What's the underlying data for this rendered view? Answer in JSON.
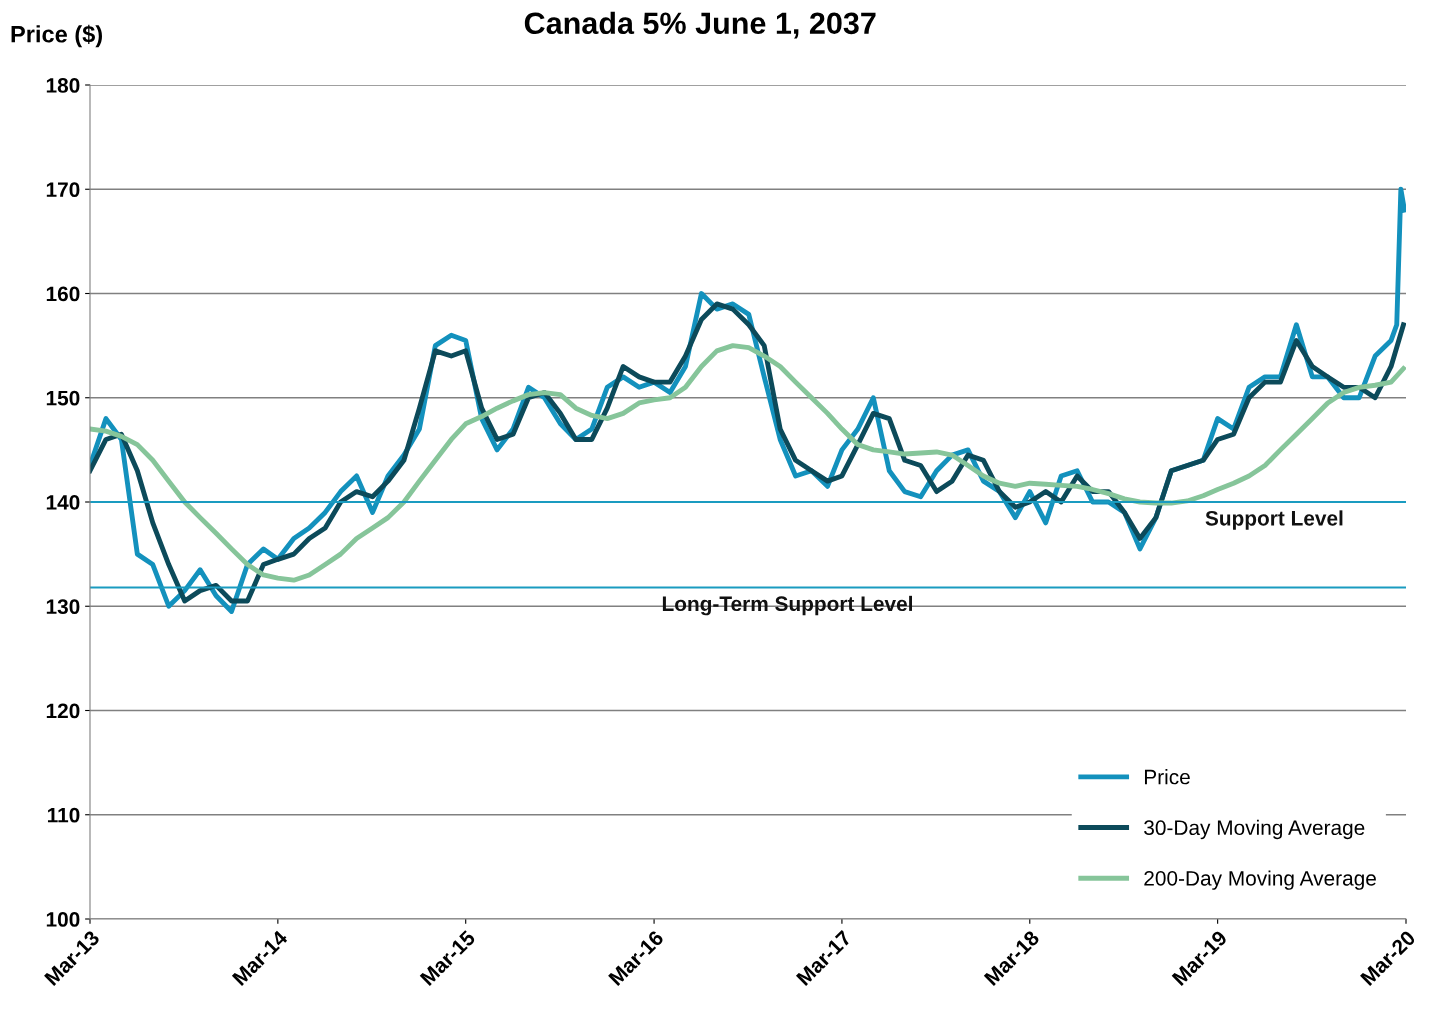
{
  "chart_data": {
    "type": "line",
    "title": "Canada 5% June 1, 2037",
    "ylabel": "Price ($)",
    "x": [
      "2013-03",
      "2013-04",
      "2013-05",
      "2013-06",
      "2013-07",
      "2013-08",
      "2013-09",
      "2013-10",
      "2013-11",
      "2013-12",
      "2014-01",
      "2014-02",
      "2014-03",
      "2014-04",
      "2014-05",
      "2014-06",
      "2014-07",
      "2014-08",
      "2014-09",
      "2014-10",
      "2014-11",
      "2014-12",
      "2015-01",
      "2015-02",
      "2015-03",
      "2015-04",
      "2015-05",
      "2015-06",
      "2015-07",
      "2015-08",
      "2015-09",
      "2015-10",
      "2015-11",
      "2015-12",
      "2016-01",
      "2016-02",
      "2016-03",
      "2016-04",
      "2016-05",
      "2016-06",
      "2016-07",
      "2016-08",
      "2016-09",
      "2016-10",
      "2016-11",
      "2016-12",
      "2017-01",
      "2017-02",
      "2017-03",
      "2017-04",
      "2017-05",
      "2017-06",
      "2017-07",
      "2017-08",
      "2017-09",
      "2017-10",
      "2017-11",
      "2017-12",
      "2018-01",
      "2018-02",
      "2018-03",
      "2018-04",
      "2018-05",
      "2018-06",
      "2018-07",
      "2018-08",
      "2018-09",
      "2018-10",
      "2018-11",
      "2018-12",
      "2019-01",
      "2019-02",
      "2019-03",
      "2019-04",
      "2019-05",
      "2019-06",
      "2019-07",
      "2019-08",
      "2019-09",
      "2019-10",
      "2019-11",
      "2019-12",
      "2020-01",
      "2020-02",
      "2020-02-25"
    ],
    "series": [
      {
        "name": "Price",
        "color": "#1391bd",
        "x": [
          "2013-03",
          "2013-04",
          "2013-05",
          "2013-06",
          "2013-07",
          "2013-08",
          "2013-09",
          "2013-10",
          "2013-11",
          "2013-12",
          "2014-01",
          "2014-02",
          "2014-03",
          "2014-04",
          "2014-05",
          "2014-06",
          "2014-07",
          "2014-08",
          "2014-09",
          "2014-10",
          "2014-11",
          "2014-12",
          "2015-01",
          "2015-02",
          "2015-03",
          "2015-04",
          "2015-05",
          "2015-06",
          "2015-07",
          "2015-08",
          "2015-09",
          "2015-10",
          "2015-11",
          "2015-12",
          "2016-01",
          "2016-02",
          "2016-03",
          "2016-04",
          "2016-05",
          "2016-06",
          "2016-07",
          "2016-08",
          "2016-09",
          "2016-10",
          "2016-11",
          "2016-12",
          "2017-01",
          "2017-02",
          "2017-03",
          "2017-04",
          "2017-05",
          "2017-06",
          "2017-07",
          "2017-08",
          "2017-09",
          "2017-10",
          "2017-11",
          "2017-12",
          "2018-01",
          "2018-02",
          "2018-03",
          "2018-04",
          "2018-05",
          "2018-06",
          "2018-07",
          "2018-08",
          "2018-09",
          "2018-10",
          "2018-11",
          "2018-12",
          "2019-01",
          "2019-02",
          "2019-03",
          "2019-04",
          "2019-05",
          "2019-06",
          "2019-07",
          "2019-08",
          "2019-09",
          "2019-10",
          "2019-11",
          "2019-12",
          "2020-01",
          "2020-02",
          "2020-02-12",
          "2020-02-20",
          "2020-02-27"
        ],
        "values": [
          143.5,
          148,
          146,
          135,
          134,
          130,
          131.5,
          133.5,
          131,
          129.5,
          134,
          135.5,
          134.5,
          136.5,
          137.5,
          139,
          141,
          142.5,
          139,
          142.5,
          144.5,
          147,
          155,
          156,
          155.5,
          148,
          145,
          147,
          151,
          150,
          147.5,
          146,
          147,
          151,
          152,
          151,
          151.5,
          150.5,
          153,
          160,
          158.5,
          159,
          158,
          152,
          146,
          142.5,
          143,
          141.5,
          145,
          147,
          150,
          143,
          141,
          140.5,
          143,
          144.5,
          145,
          142,
          141,
          138.5,
          141,
          138,
          142.5,
          143,
          140,
          140,
          139,
          135.5,
          138.5,
          143,
          143.5,
          144,
          148,
          147,
          151,
          152,
          152,
          157,
          152,
          152,
          150,
          150,
          154,
          155.5,
          157,
          170,
          168
        ]
      },
      {
        "name": "30-Day Moving Average",
        "color": "#0c4a5a",
        "values": [
          143,
          146,
          146.5,
          143,
          138,
          134,
          130.5,
          131.5,
          132,
          130.5,
          130.5,
          134,
          134.5,
          135,
          136.5,
          137.5,
          140,
          141,
          140.5,
          142,
          144,
          149,
          154.5,
          154,
          154.5,
          149,
          146,
          146.5,
          150,
          150.5,
          148.5,
          146,
          146,
          149,
          153,
          152,
          151.5,
          151.5,
          154,
          157.5,
          159,
          158.5,
          157,
          155,
          147,
          144,
          143,
          142,
          142.5,
          145.5,
          148.5,
          148,
          144,
          143.5,
          141,
          142,
          144.5,
          144,
          141,
          139.5,
          140,
          141,
          140,
          142.5,
          141,
          141,
          139,
          136.5,
          138.5,
          143,
          143.5,
          144,
          146,
          146.5,
          150,
          151.5,
          151.5,
          155.5,
          153,
          152,
          151,
          151,
          150,
          153,
          157
        ]
      },
      {
        "name": "200-Day Moving Average",
        "color": "#86c59a",
        "values": [
          147,
          146.8,
          146.3,
          145.5,
          144,
          142,
          140,
          138.5,
          137,
          135.5,
          134,
          133,
          132.7,
          132.5,
          133,
          134,
          135,
          136.5,
          137.5,
          138.5,
          140,
          142,
          144,
          146,
          147.5,
          148.2,
          149,
          149.7,
          150.3,
          150.5,
          150.3,
          149,
          148.3,
          148,
          148.5,
          149.5,
          149.8,
          150,
          151,
          153,
          154.5,
          155,
          154.8,
          154,
          153,
          151.5,
          150,
          148.5,
          147,
          145.5,
          145,
          144.8,
          144.6,
          144.7,
          144.8,
          144.5,
          143.5,
          142.5,
          141.8,
          141.5,
          141.8,
          141.7,
          141.6,
          141.5,
          141.2,
          140.8,
          140.3,
          140,
          139.9,
          139.9,
          140.1,
          140.6,
          141.2,
          141.8,
          142.5,
          143.5,
          145,
          146.5,
          148,
          149.5,
          150.5,
          151,
          151.2,
          151.5,
          152.8
        ]
      }
    ],
    "xlim": [
      "2013-03-01",
      "2020-03-01"
    ],
    "xticks": [
      {
        "value": "2013-03-01",
        "label": "Mar-13"
      },
      {
        "value": "2014-03-01",
        "label": "Mar-14"
      },
      {
        "value": "2015-03-01",
        "label": "Mar-15"
      },
      {
        "value": "2016-03-01",
        "label": "Mar-16"
      },
      {
        "value": "2017-03-01",
        "label": "Mar-17"
      },
      {
        "value": "2018-03-01",
        "label": "Mar-18"
      },
      {
        "value": "2019-03-01",
        "label": "Mar-19"
      },
      {
        "value": "2020-03-01",
        "label": "Mar-20"
      }
    ],
    "ylim": [
      100,
      180
    ],
    "yticks": [
      100,
      110,
      120,
      130,
      140,
      150,
      160,
      170,
      180
    ],
    "ref_lines": [
      {
        "axis": "y",
        "value": 140,
        "label": "Support Level",
        "color": "#1a9bc0"
      },
      {
        "axis": "y",
        "value": 131.8,
        "label": "Long-Term Support Level",
        "color": "#1a9bc0"
      }
    ],
    "grid": "y",
    "legend": "bottom right",
    "line_style": "solid",
    "marker": "none"
  }
}
